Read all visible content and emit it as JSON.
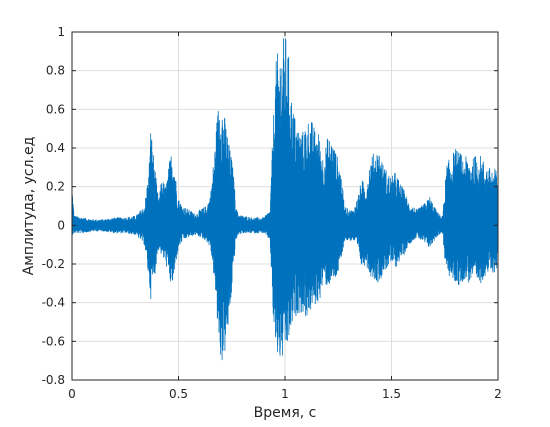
{
  "chart_data": {
    "type": "line",
    "title": "",
    "xlabel": "Время, с",
    "ylabel": "Амплитуда, усл.ед",
    "xlim": [
      0,
      2
    ],
    "ylim": [
      -0.8,
      1
    ],
    "grid": true,
    "xticks": [
      0,
      0.5,
      1,
      1.5,
      2
    ],
    "xtick_labels": [
      "0",
      "0.5",
      "1",
      "1.5",
      "2"
    ],
    "yticks": [
      -0.8,
      -0.6,
      -0.4,
      -0.2,
      0,
      0.2,
      0.4,
      0.6,
      0.8,
      1
    ],
    "ytick_labels": [
      "-0.8",
      "-0.6",
      "-0.4",
      "-0.2",
      "0",
      "0.2",
      "0.4",
      "0.6",
      "0.8",
      "1"
    ],
    "series": [
      {
        "color": "#0072bd",
        "envelope": {
          "t": [
            0.0,
            0.01,
            0.05,
            0.1,
            0.15,
            0.2,
            0.25,
            0.3,
            0.34,
            0.36,
            0.37,
            0.38,
            0.39,
            0.4,
            0.41,
            0.42,
            0.44,
            0.46,
            0.47,
            0.48,
            0.49,
            0.5,
            0.52,
            0.55,
            0.58,
            0.6,
            0.63,
            0.65,
            0.67,
            0.68,
            0.69,
            0.7,
            0.71,
            0.72,
            0.73,
            0.74,
            0.75,
            0.76,
            0.77,
            0.78,
            0.8,
            0.85,
            0.9,
            0.93,
            0.94,
            0.95,
            0.96,
            0.97,
            0.98,
            0.99,
            1.0,
            1.01,
            1.02,
            1.03,
            1.04,
            1.05,
            1.06,
            1.08,
            1.1,
            1.12,
            1.14,
            1.16,
            1.18,
            1.2,
            1.22,
            1.24,
            1.26,
            1.28,
            1.3,
            1.32,
            1.34,
            1.36,
            1.38,
            1.4,
            1.42,
            1.44,
            1.46,
            1.48,
            1.5,
            1.52,
            1.54,
            1.56,
            1.58,
            1.6,
            1.62,
            1.64,
            1.66,
            1.68,
            1.7,
            1.72,
            1.74,
            1.75,
            1.76,
            1.78,
            1.8,
            1.82,
            1.84,
            1.86,
            1.88,
            1.9,
            1.92,
            1.94,
            1.96,
            1.98,
            2.0
          ],
          "upper": [
            0.22,
            0.05,
            0.04,
            0.03,
            0.03,
            0.04,
            0.04,
            0.05,
            0.1,
            0.28,
            0.52,
            0.4,
            0.3,
            0.18,
            0.14,
            0.25,
            0.2,
            0.35,
            0.4,
            0.34,
            0.22,
            0.14,
            0.1,
            0.08,
            0.06,
            0.08,
            0.1,
            0.16,
            0.4,
            0.55,
            0.66,
            0.68,
            0.6,
            0.55,
            0.48,
            0.4,
            0.35,
            0.25,
            0.1,
            0.06,
            0.05,
            0.04,
            0.04,
            0.08,
            0.4,
            0.68,
            0.88,
            0.9,
            0.92,
            0.96,
            1.0,
            0.96,
            0.85,
            0.68,
            0.6,
            0.55,
            0.52,
            0.48,
            0.54,
            0.56,
            0.5,
            0.48,
            0.35,
            0.46,
            0.45,
            0.38,
            0.3,
            0.1,
            0.08,
            0.08,
            0.14,
            0.24,
            0.2,
            0.35,
            0.38,
            0.4,
            0.32,
            0.28,
            0.25,
            0.28,
            0.22,
            0.18,
            0.12,
            0.1,
            0.08,
            0.1,
            0.12,
            0.15,
            0.1,
            0.06,
            0.05,
            0.2,
            0.32,
            0.36,
            0.4,
            0.38,
            0.35,
            0.36,
            0.34,
            0.38,
            0.36,
            0.32,
            0.3,
            0.3,
            0.28
          ],
          "lower": [
            -0.05,
            -0.04,
            -0.04,
            -0.03,
            -0.03,
            -0.04,
            -0.04,
            -0.05,
            -0.1,
            -0.28,
            -0.38,
            -0.3,
            -0.25,
            -0.16,
            -0.12,
            -0.16,
            -0.2,
            -0.3,
            -0.32,
            -0.28,
            -0.18,
            -0.12,
            -0.08,
            -0.06,
            -0.05,
            -0.06,
            -0.08,
            -0.12,
            -0.3,
            -0.5,
            -0.6,
            -0.72,
            -0.7,
            -0.66,
            -0.58,
            -0.48,
            -0.35,
            -0.2,
            -0.08,
            -0.05,
            -0.04,
            -0.04,
            -0.04,
            -0.08,
            -0.4,
            -0.6,
            -0.68,
            -0.7,
            -0.72,
            -0.7,
            -0.68,
            -0.65,
            -0.6,
            -0.55,
            -0.5,
            -0.48,
            -0.45,
            -0.46,
            -0.48,
            -0.45,
            -0.42,
            -0.4,
            -0.3,
            -0.32,
            -0.3,
            -0.28,
            -0.22,
            -0.08,
            -0.08,
            -0.08,
            -0.12,
            -0.22,
            -0.2,
            -0.26,
            -0.28,
            -0.3,
            -0.25,
            -0.22,
            -0.2,
            -0.22,
            -0.18,
            -0.15,
            -0.1,
            -0.08,
            -0.06,
            -0.08,
            -0.1,
            -0.12,
            -0.08,
            -0.05,
            -0.04,
            -0.18,
            -0.25,
            -0.28,
            -0.3,
            -0.32,
            -0.28,
            -0.3,
            -0.28,
            -0.32,
            -0.3,
            -0.26,
            -0.25,
            -0.25,
            -0.22
          ]
        }
      }
    ]
  }
}
